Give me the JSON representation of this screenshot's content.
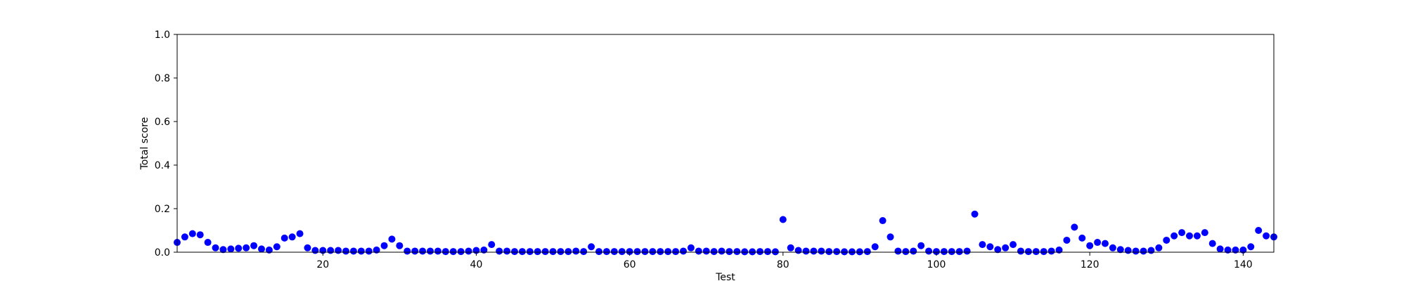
{
  "chart_data": {
    "type": "scatter",
    "xlabel": "Test",
    "ylabel": "Total score",
    "xlim": [
      1,
      144
    ],
    "ylim": [
      0,
      1.0
    ],
    "xticks": [
      20,
      40,
      60,
      80,
      100,
      120,
      140
    ],
    "yticks": [
      0.0,
      0.2,
      0.4,
      0.6,
      0.8,
      1.0
    ],
    "ytick_labels": [
      "0.0",
      "0.2",
      "0.4",
      "0.6",
      "0.8",
      "1.0"
    ],
    "grid": false,
    "marker_color": "#0000ff",
    "series": [
      {
        "x": [
          1,
          2,
          3,
          4,
          5,
          6,
          7,
          8,
          9,
          10,
          11,
          12,
          13,
          14,
          15,
          16,
          17,
          18,
          19,
          20,
          21,
          22,
          23,
          24,
          25,
          26,
          27,
          28,
          29,
          30,
          31,
          32,
          33,
          34,
          35,
          36,
          37,
          38,
          39,
          40,
          41,
          42,
          43,
          44,
          45,
          46,
          47,
          48,
          49,
          50,
          51,
          52,
          53,
          54,
          55,
          56,
          57,
          58,
          59,
          60,
          61,
          62,
          63,
          64,
          65,
          66,
          67,
          68,
          69,
          70,
          71,
          72,
          73,
          74,
          75,
          76,
          77,
          78,
          79,
          80,
          81,
          82,
          83,
          84,
          85,
          86,
          87,
          88,
          89,
          90,
          91,
          92,
          93,
          94,
          95,
          96,
          97,
          98,
          99,
          100,
          101,
          102,
          103,
          104,
          105,
          106,
          107,
          108,
          109,
          110,
          111,
          112,
          113,
          114,
          115,
          116,
          117,
          118,
          119,
          120,
          121,
          122,
          123,
          124,
          125,
          126,
          127,
          128,
          129,
          130,
          131,
          132,
          133,
          134,
          135,
          136,
          137,
          138,
          139,
          140,
          141,
          142,
          143,
          144
        ],
        "y": [
          0.045,
          0.07,
          0.085,
          0.08,
          0.045,
          0.02,
          0.012,
          0.015,
          0.018,
          0.02,
          0.03,
          0.015,
          0.01,
          0.025,
          0.065,
          0.07,
          0.085,
          0.02,
          0.008,
          0.008,
          0.008,
          0.008,
          0.005,
          0.005,
          0.005,
          0.005,
          0.01,
          0.03,
          0.06,
          0.03,
          0.005,
          0.005,
          0.005,
          0.005,
          0.005,
          0.003,
          0.003,
          0.003,
          0.005,
          0.008,
          0.01,
          0.035,
          0.005,
          0.005,
          0.003,
          0.003,
          0.003,
          0.003,
          0.003,
          0.003,
          0.003,
          0.003,
          0.005,
          0.003,
          0.025,
          0.003,
          0.003,
          0.003,
          0.003,
          0.003,
          0.003,
          0.003,
          0.003,
          0.003,
          0.003,
          0.003,
          0.005,
          0.02,
          0.005,
          0.005,
          0.003,
          0.005,
          0.003,
          0.003,
          0.002,
          0.002,
          0.003,
          0.003,
          0.002,
          0.15,
          0.02,
          0.008,
          0.005,
          0.005,
          0.005,
          0.003,
          0.003,
          0.002,
          0.002,
          0.002,
          0.003,
          0.025,
          0.145,
          0.07,
          0.005,
          0.003,
          0.005,
          0.03,
          0.005,
          0.003,
          0.003,
          0.003,
          0.003,
          0.005,
          0.175,
          0.035,
          0.025,
          0.012,
          0.02,
          0.035,
          0.005,
          0.003,
          0.003,
          0.003,
          0.005,
          0.01,
          0.055,
          0.115,
          0.065,
          0.03,
          0.045,
          0.04,
          0.02,
          0.012,
          0.008,
          0.005,
          0.005,
          0.008,
          0.02,
          0.055,
          0.075,
          0.09,
          0.075,
          0.075,
          0.09,
          0.04,
          0.015,
          0.01,
          0.01,
          0.01,
          0.025,
          0.1,
          0.075,
          0.07
        ]
      }
    ]
  }
}
